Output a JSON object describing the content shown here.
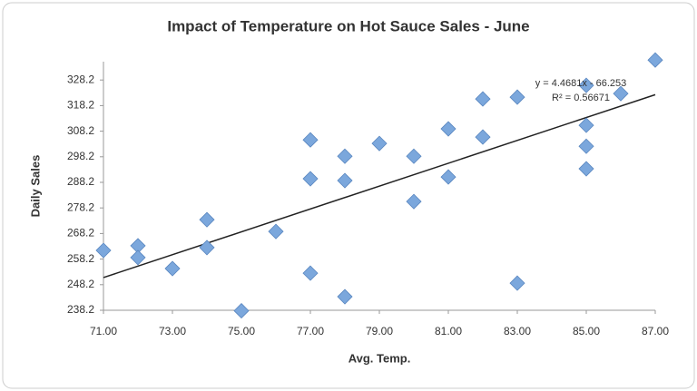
{
  "chart_data": {
    "type": "scatter",
    "title": "Impact of Temperature on Hot Sauce Sales - June",
    "x_label": "Avg. Temp.",
    "y_label": "Daily Sales",
    "series": [
      {
        "name": "Daily Sales",
        "color": "#7ba7dc",
        "x": [
          71,
          72,
          72,
          73,
          74,
          74,
          75,
          76,
          77,
          77,
          77,
          78,
          78,
          78,
          79,
          80,
          80,
          81,
          81,
          82,
          82,
          83,
          83,
          85,
          85,
          85,
          85,
          86,
          87
        ],
        "values": [
          261.6,
          263.4,
          258.8,
          254.5,
          273.6,
          262.7,
          238,
          269.0,
          304.8,
          289.6,
          252.7,
          298.4,
          288.9,
          243.5,
          303.4,
          298.4,
          280.7,
          309.1,
          290.3,
          320.8,
          305.9,
          321.5,
          248.8,
          326.1,
          310.5,
          302.3,
          293.5,
          322.9,
          336.0
        ]
      }
    ],
    "trendline": {
      "slope": 4.4681,
      "intercept": -66.253,
      "equation": "y = 4.4681x - 66.253",
      "r2_label": "R² = 0.56671",
      "color": "#222222"
    },
    "xlim": [
      71,
      87
    ],
    "xticks": [
      {
        "value": 71,
        "label": "71.00"
      },
      {
        "value": 73,
        "label": "73.00"
      },
      {
        "value": 75,
        "label": "75.00"
      },
      {
        "value": 77,
        "label": "77.00"
      },
      {
        "value": 79,
        "label": "79.00"
      },
      {
        "value": 81,
        "label": "81.00"
      },
      {
        "value": 83,
        "label": "83.00"
      },
      {
        "value": 85,
        "label": "85.00"
      },
      {
        "value": 87,
        "label": "87.00"
      }
    ],
    "ylim": [
      238.2,
      338.2
    ],
    "yticks": [
      238.2,
      248.2,
      258.2,
      268.2,
      278.2,
      288.2,
      298.2,
      308.2,
      318.2,
      328.2
    ],
    "grid": false
  }
}
